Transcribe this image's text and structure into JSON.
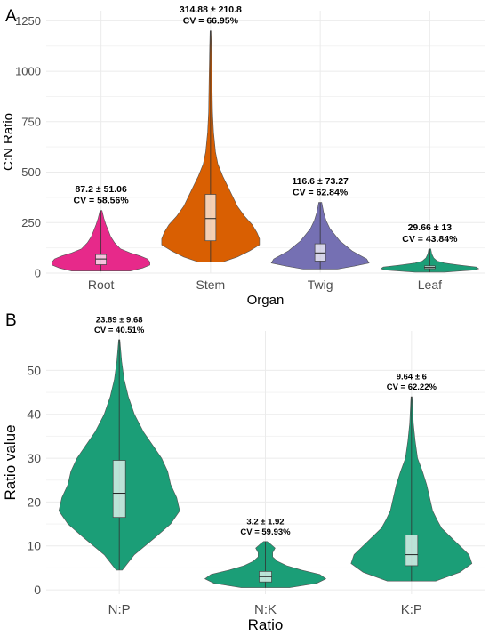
{
  "chart_data": [
    {
      "panel": "A",
      "type": "violin",
      "xlabel": "Organ",
      "ylabel": "C:N Ratio",
      "ylim": [
        0,
        1300
      ],
      "yticks": [
        0,
        250,
        500,
        750,
        1000,
        1250
      ],
      "grid": true,
      "categories": [
        "Root",
        "Stem",
        "Twig",
        "Leaf"
      ],
      "colors": [
        "#e7298a",
        "#d95f02",
        "#7570b3",
        "#1b9e77"
      ],
      "series": [
        {
          "category": "Root",
          "min": 10,
          "q1": 42,
          "median": 70,
          "q3": 92,
          "max": 310,
          "annotation": [
            "87.2 ± 51.06",
            "CV = 58.56%"
          ],
          "density": [
            [
              10,
              0.6
            ],
            [
              25,
              0.85
            ],
            [
              40,
              1.0
            ],
            [
              55,
              1.0
            ],
            [
              70,
              0.95
            ],
            [
              85,
              0.8
            ],
            [
              100,
              0.6
            ],
            [
              120,
              0.4
            ],
            [
              150,
              0.28
            ],
            [
              180,
              0.2
            ],
            [
              210,
              0.15
            ],
            [
              240,
              0.1
            ],
            [
              270,
              0.06
            ],
            [
              300,
              0.03
            ],
            [
              310,
              0.02
            ]
          ]
        },
        {
          "category": "Stem",
          "min": 55,
          "q1": 160,
          "median": 270,
          "q3": 390,
          "max": 1200,
          "annotation": [
            "314.88 ± 210.8",
            "CV = 66.95%"
          ],
          "density": [
            [
              55,
              0.25
            ],
            [
              80,
              0.55
            ],
            [
              110,
              0.8
            ],
            [
              140,
              1.0
            ],
            [
              170,
              1.0
            ],
            [
              200,
              0.95
            ],
            [
              240,
              0.85
            ],
            [
              280,
              0.7
            ],
            [
              330,
              0.55
            ],
            [
              380,
              0.45
            ],
            [
              430,
              0.35
            ],
            [
              480,
              0.25
            ],
            [
              540,
              0.15
            ],
            [
              600,
              0.1
            ],
            [
              700,
              0.06
            ],
            [
              800,
              0.04
            ],
            [
              950,
              0.03
            ],
            [
              1100,
              0.02
            ],
            [
              1200,
              0.01
            ]
          ]
        },
        {
          "category": "Twig",
          "min": 20,
          "q1": 60,
          "median": 100,
          "q3": 145,
          "max": 350,
          "annotation": [
            "116.6 ± 73.27",
            "CV = 62.84%"
          ],
          "density": [
            [
              20,
              0.35
            ],
            [
              35,
              0.7
            ],
            [
              50,
              1.0
            ],
            [
              70,
              0.95
            ],
            [
              90,
              0.8
            ],
            [
              110,
              0.65
            ],
            [
              130,
              0.55
            ],
            [
              160,
              0.4
            ],
            [
              190,
              0.3
            ],
            [
              220,
              0.2
            ],
            [
              260,
              0.12
            ],
            [
              300,
              0.07
            ],
            [
              350,
              0.03
            ]
          ]
        },
        {
          "category": "Leaf",
          "min": 5,
          "q1": 22,
          "median": 28,
          "q3": 36,
          "max": 120,
          "annotation": [
            "29.66 ± 13",
            "CV = 43.84%"
          ],
          "density": [
            [
              5,
              0.3
            ],
            [
              15,
              0.9
            ],
            [
              22,
              1.0
            ],
            [
              30,
              0.95
            ],
            [
              40,
              0.6
            ],
            [
              50,
              0.3
            ],
            [
              60,
              0.15
            ],
            [
              75,
              0.08
            ],
            [
              95,
              0.04
            ],
            [
              120,
              0.02
            ]
          ]
        }
      ]
    },
    {
      "panel": "B",
      "type": "violin",
      "xlabel": "Ratio",
      "ylabel": "Ratio value",
      "ylim": [
        -1,
        59
      ],
      "yticks": [
        0,
        10,
        20,
        30,
        40,
        50
      ],
      "grid": true,
      "categories": [
        "N:P",
        "N:K",
        "K:P"
      ],
      "colors": [
        "#1b9e77",
        "#1b9e77",
        "#1b9e77"
      ],
      "series": [
        {
          "category": "N:P",
          "min": 4.5,
          "q1": 16.5,
          "median": 22,
          "q3": 29.5,
          "max": 57,
          "annotation": [
            "23.89 ± 9.68",
            "CV = 40.51%"
          ],
          "density": [
            [
              4.5,
              0.05
            ],
            [
              8,
              0.25
            ],
            [
              12,
              0.6
            ],
            [
              15,
              0.85
            ],
            [
              18,
              1.0
            ],
            [
              21,
              0.95
            ],
            [
              24,
              0.85
            ],
            [
              27,
              0.8
            ],
            [
              30,
              0.7
            ],
            [
              33,
              0.55
            ],
            [
              36,
              0.4
            ],
            [
              40,
              0.25
            ],
            [
              44,
              0.15
            ],
            [
              48,
              0.08
            ],
            [
              52,
              0.04
            ],
            [
              57,
              0.01
            ]
          ]
        },
        {
          "category": "N:K",
          "min": 0.5,
          "q1": 1.8,
          "median": 3,
          "q3": 4.2,
          "max": 11,
          "annotation": [
            "3.2 ± 1.92",
            "CV = 59.93%"
          ],
          "density": [
            [
              0.5,
              0.4
            ],
            [
              1.5,
              0.85
            ],
            [
              2.5,
              1.0
            ],
            [
              3.5,
              0.9
            ],
            [
              4.5,
              0.6
            ],
            [
              5.5,
              0.35
            ],
            [
              6.5,
              0.2
            ],
            [
              7.5,
              0.12
            ],
            [
              8.5,
              0.12
            ],
            [
              9.5,
              0.16
            ],
            [
              10.5,
              0.08
            ],
            [
              11,
              0.03
            ]
          ]
        },
        {
          "category": "K:P",
          "min": 2,
          "q1": 5.5,
          "median": 8,
          "q3": 12.5,
          "max": 44,
          "annotation": [
            "9.64 ± 6",
            "CV = 62.22%"
          ],
          "density": [
            [
              2,
              0.4
            ],
            [
              4,
              0.8
            ],
            [
              6,
              1.0
            ],
            [
              8,
              0.95
            ],
            [
              10,
              0.8
            ],
            [
              12,
              0.65
            ],
            [
              14,
              0.5
            ],
            [
              16,
              0.42
            ],
            [
              18,
              0.35
            ],
            [
              21,
              0.3
            ],
            [
              24,
              0.25
            ],
            [
              27,
              0.18
            ],
            [
              30,
              0.1
            ],
            [
              34,
              0.06
            ],
            [
              38,
              0.03
            ],
            [
              44,
              0.01
            ]
          ]
        }
      ]
    }
  ]
}
